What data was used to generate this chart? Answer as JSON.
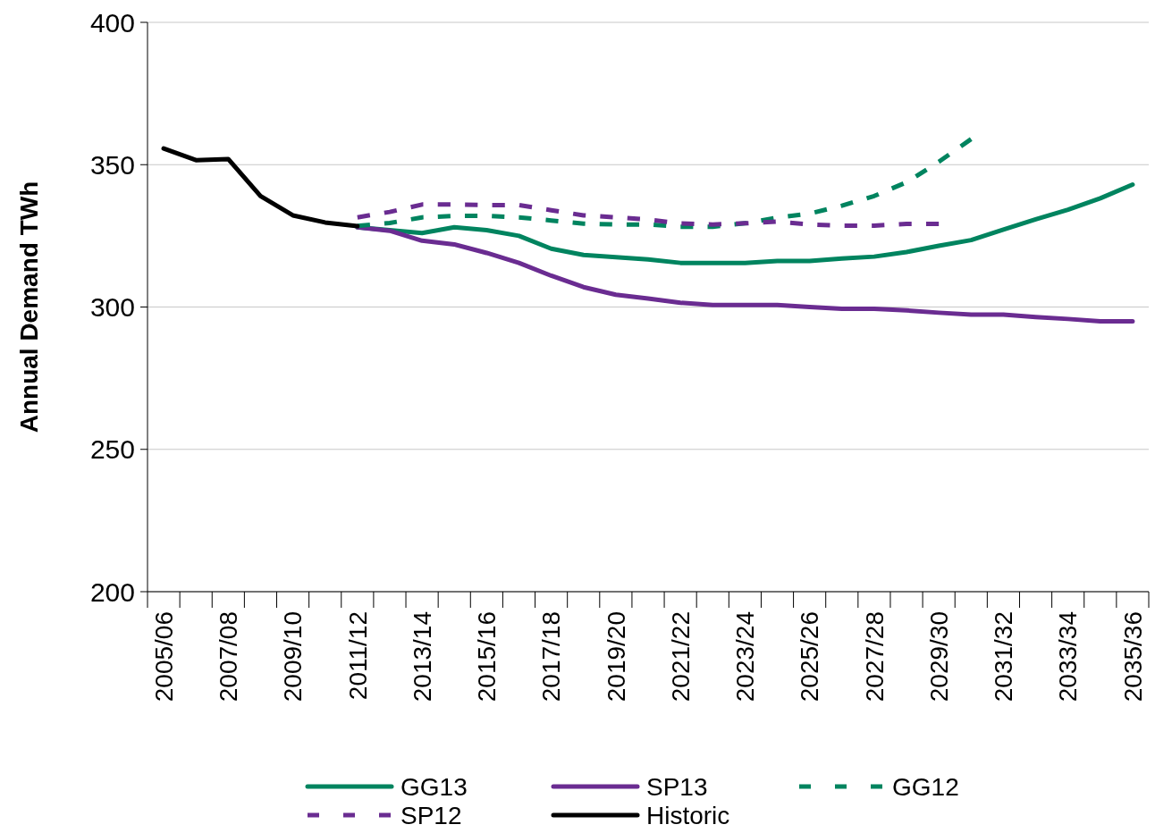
{
  "chart_data": {
    "type": "line",
    "ylabel": "Annual Demand TWh",
    "categories": [
      "2005/06",
      null,
      "2007/08",
      null,
      "2009/10",
      null,
      "2011/12",
      null,
      "2013/14",
      null,
      "2015/16",
      null,
      "2017/18",
      null,
      "2019/20",
      null,
      "2021/22",
      null,
      "2023/24",
      null,
      "2025/26",
      null,
      "2027/28",
      null,
      "2029/30",
      null,
      "2031/32",
      null,
      "2033/34",
      null,
      "2035/36"
    ],
    "ylim": [
      200,
      400
    ],
    "yticks": [
      200,
      250,
      300,
      350,
      400
    ],
    "grid": "y",
    "legend": "bottom",
    "series": [
      {
        "name": "GG13",
        "color": "#00845f",
        "line_style": "solid",
        "values": [
          null,
          null,
          null,
          null,
          null,
          null,
          328,
          327,
          326,
          328,
          327,
          325,
          320.5,
          318.3,
          317.5,
          316.7,
          315.5,
          315.5,
          315.5,
          316.2,
          316.2,
          317,
          317.7,
          319.3,
          321.5,
          323.5,
          327.2,
          330.8,
          334.2,
          338.2,
          343
        ]
      },
      {
        "name": "SP13",
        "color": "#6a2c91",
        "line_style": "solid",
        "values": [
          null,
          null,
          null,
          null,
          null,
          null,
          328,
          326.8,
          323.3,
          322,
          319,
          315.5,
          311,
          307,
          304.3,
          303,
          301.5,
          300.7,
          300.7,
          300.7,
          300,
          299.4,
          299.4,
          298.8,
          298,
          297.3,
          297.3,
          296.5,
          295.8,
          295,
          295
        ]
      },
      {
        "name": "GG12",
        "color": "#00845f",
        "line_style": "dashed",
        "values": [
          null,
          null,
          null,
          null,
          null,
          null,
          328.5,
          329.5,
          331.5,
          332,
          332,
          331.5,
          330.4,
          329.3,
          329,
          329,
          328.2,
          328.2,
          329.4,
          331.4,
          332.8,
          335.6,
          339,
          343.8,
          351,
          359,
          null,
          null,
          null,
          null,
          null
        ]
      },
      {
        "name": "SP12",
        "color": "#6a2c91",
        "line_style": "dashed",
        "values": [
          null,
          null,
          null,
          null,
          null,
          null,
          331.5,
          333.4,
          336,
          336,
          335.8,
          335.8,
          334,
          332.2,
          331.5,
          330.7,
          329.4,
          329,
          329.4,
          330,
          329,
          328.6,
          328.6,
          329.2,
          329.2,
          null,
          null,
          null,
          null,
          null,
          null
        ]
      },
      {
        "name": "Historic",
        "color": "#000000",
        "line_style": "solid",
        "values": [
          355.7,
          351.6,
          352,
          339,
          332.2,
          329.7,
          328.4,
          null,
          null,
          null,
          null,
          null,
          null,
          null,
          null,
          null,
          null,
          null,
          null,
          null,
          null,
          null,
          null,
          null,
          null,
          null,
          null,
          null,
          null,
          null,
          null
        ]
      }
    ]
  }
}
